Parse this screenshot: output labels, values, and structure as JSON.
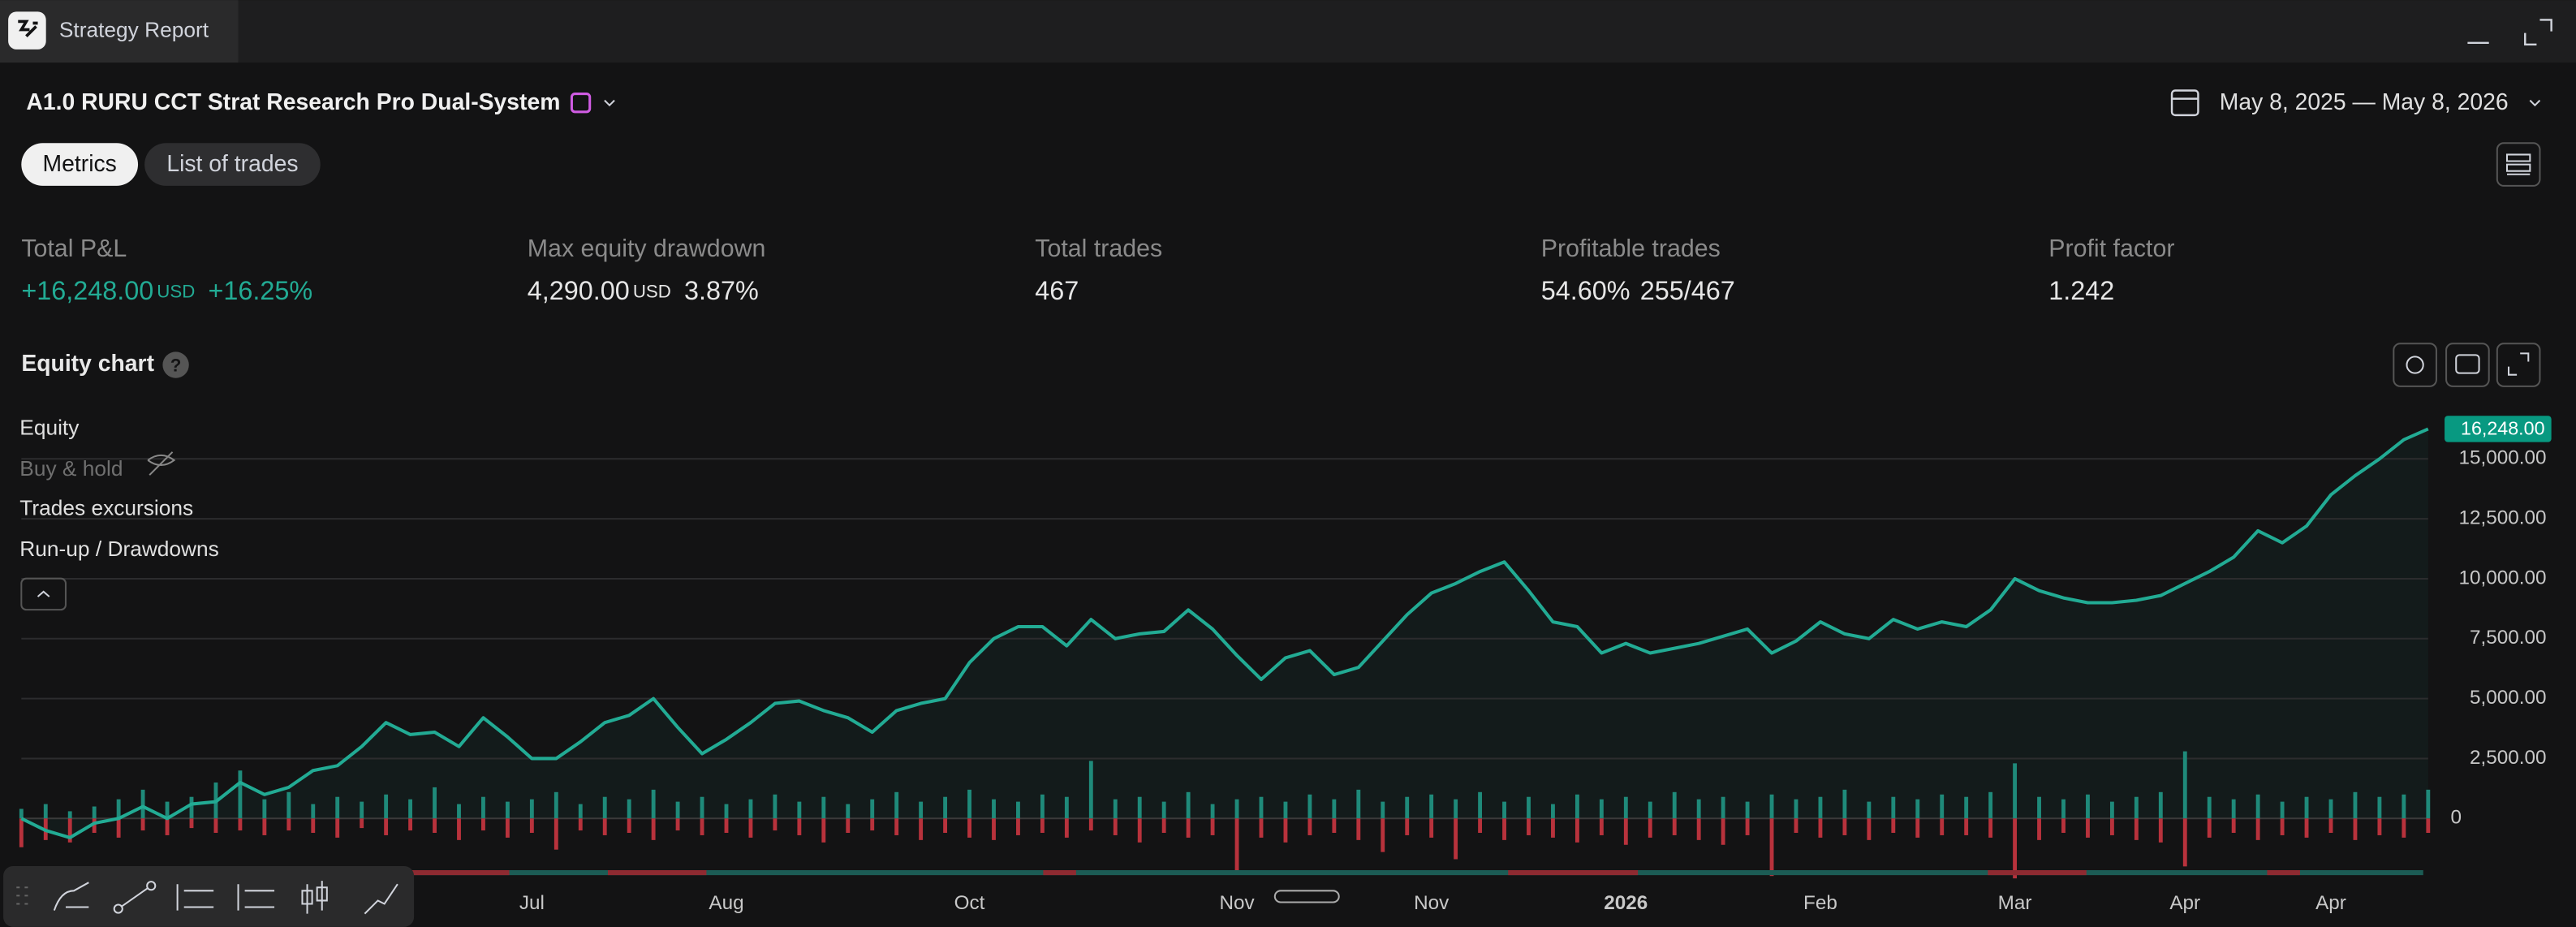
{
  "window": {
    "title": "Strategy Report"
  },
  "header": {
    "strategy": "A1.0 RURU CCT Strat Research Pro Dual-System",
    "date_range": "May 8, 2025 — May 8, 2026"
  },
  "tabs": [
    "Metrics",
    "List of trades"
  ],
  "metrics": [
    {
      "label": "Total P&L",
      "value": "+16,248.00",
      "unit": "USD",
      "extra": "+16.25%"
    },
    {
      "label": "Max equity drawdown",
      "value": "4,290.00",
      "unit": "USD",
      "extra": "3.87%"
    },
    {
      "label": "Total trades",
      "value": "467"
    },
    {
      "label": "Profitable trades",
      "value": "54.60%",
      "extra": "255/467"
    },
    {
      "label": "Profit factor",
      "value": "1.242"
    }
  ],
  "chart_data": {
    "type": "line",
    "title": "Equity chart",
    "legend": [
      "Equity",
      "Buy & hold",
      "Trades excursions",
      "Run-up / Drawdowns"
    ],
    "equity": {
      "color": "#22ab94",
      "values": [
        0,
        -500,
        -800,
        -200,
        0,
        500,
        0,
        600,
        700,
        1500,
        1000,
        1300,
        2000,
        2200,
        3000,
        4000,
        3500,
        3600,
        3000,
        4200,
        3400,
        2500,
        2500,
        3200,
        4000,
        4300,
        5000,
        3800,
        2700,
        3300,
        4000,
        4800,
        4900,
        4500,
        4200,
        3600,
        4500,
        4800,
        5000,
        6500,
        7500,
        8000,
        8000,
        7200,
        8300,
        7500,
        7700,
        7800,
        8700,
        7900,
        6800,
        5800,
        6700,
        7000,
        6000,
        6300,
        7400,
        8500,
        9400,
        9800,
        10300,
        10700,
        9500,
        8200,
        8000,
        6900,
        7300,
        6900,
        7100,
        7300,
        7600,
        7900,
        6900,
        7400,
        8200,
        7700,
        7500,
        8300,
        7900,
        8200,
        8000,
        8700,
        10000,
        9500,
        9200,
        9000,
        9000,
        9100,
        9300,
        9800,
        10300,
        10900,
        12000,
        11500,
        12200,
        13500,
        14300,
        15000,
        15800,
        16248
      ],
      "last_label": "16,248.00"
    },
    "runup": {
      "color": "#1f8a7a",
      "values": [
        400,
        600,
        300,
        500,
        800,
        1200,
        700,
        900,
        1500,
        2000,
        800,
        1100,
        600,
        900,
        700,
        1000,
        800,
        1300,
        600,
        900,
        700,
        800,
        1100,
        600,
        900,
        800,
        1200,
        700,
        900,
        600,
        800,
        1000,
        700,
        900,
        600,
        800,
        1100,
        700,
        900,
        1200,
        800,
        700,
        1000,
        900,
        2400,
        800,
        900,
        700,
        1100,
        600,
        800,
        900,
        700,
        1000,
        800,
        1200,
        700,
        900,
        1000,
        800,
        1100,
        700,
        900,
        600,
        1000,
        800,
        900,
        700,
        1100,
        800,
        900,
        700,
        1000,
        800,
        900,
        1200,
        700,
        900,
        800,
        1000,
        900,
        1100,
        2300,
        900,
        800,
        1000,
        700,
        900,
        1100,
        2800,
        900,
        800,
        1000,
        700,
        900,
        800,
        1100,
        900,
        1000,
        1200
      ]
    },
    "drawdown": {
      "color": "#b8323c",
      "values": [
        -1200,
        -900,
        -1000,
        -600,
        -800,
        -500,
        -700,
        -400,
        -600,
        -500,
        -700,
        -500,
        -600,
        -800,
        -400,
        -700,
        -500,
        -600,
        -900,
        -500,
        -800,
        -600,
        -1300,
        -500,
        -700,
        -600,
        -900,
        -500,
        -700,
        -600,
        -800,
        -500,
        -700,
        -1000,
        -600,
        -500,
        -700,
        -900,
        -600,
        -800,
        -900,
        -700,
        -600,
        -800,
        -500,
        -700,
        -1000,
        -600,
        -800,
        -700,
        -2200,
        -800,
        -1000,
        -700,
        -600,
        -900,
        -1400,
        -700,
        -800,
        -1700,
        -600,
        -900,
        -700,
        -800,
        -1000,
        -700,
        -1100,
        -800,
        -700,
        -900,
        -1100,
        -700,
        -2400,
        -600,
        -800,
        -700,
        -900,
        -600,
        -800,
        -700,
        -700,
        -800,
        -2500,
        -900,
        -600,
        -800,
        -700,
        -900,
        -1000,
        -2000,
        -800,
        -600,
        -900,
        -700,
        -800,
        -600,
        -900,
        -700,
        -800,
        -600
      ]
    },
    "xlim": [
      0,
      99
    ],
    "xticks": [
      {
        "value": 21,
        "label": "Jul"
      },
      {
        "value": 29,
        "label": "Aug"
      },
      {
        "value": 39,
        "label": "Oct"
      },
      {
        "value": 50,
        "label": "Nov"
      },
      {
        "value": 58,
        "label": "Nov"
      },
      {
        "value": 66,
        "label": "2026"
      },
      {
        "value": 74,
        "label": "Feb"
      },
      {
        "value": 82,
        "label": "Mar"
      },
      {
        "value": 89,
        "label": "Apr"
      },
      {
        "value": 95,
        "label": "Apr"
      }
    ],
    "ylim": [
      -2500,
      17000
    ],
    "yticks": [
      0,
      {
        "value": 2500,
        "label": "2,500.00"
      },
      {
        "value": 5000,
        "label": "5,000.00"
      },
      {
        "value": 7500,
        "label": "7,500.00"
      },
      {
        "value": 10000,
        "label": "10,000.00"
      },
      {
        "value": 12500,
        "label": "12,500.00"
      },
      {
        "value": 15000,
        "label": "15,000.00"
      }
    ],
    "grid": true
  }
}
